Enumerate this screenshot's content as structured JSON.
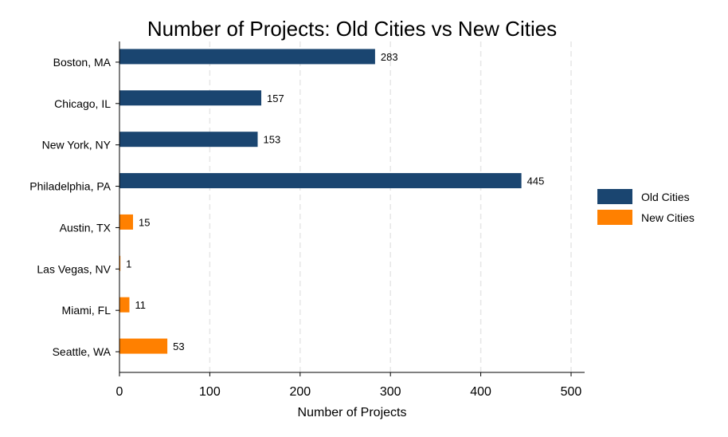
{
  "chart_data": {
    "type": "bar",
    "orientation": "horizontal",
    "title": "Number of Projects: Old Cities vs New Cities",
    "xlabel": "Number of Projects",
    "ylabel": "",
    "xlim": [
      0,
      515
    ],
    "xticks": [
      0,
      100,
      200,
      300,
      400,
      500
    ],
    "grid": "vertical dashed",
    "legend_position": "right",
    "categories": [
      "Boston, MA",
      "Chicago, IL",
      "New York, NY",
      "Philadelphia, PA",
      "Austin, TX",
      "Las Vegas, NV",
      "Miami, FL",
      "Seattle, WA"
    ],
    "series": [
      {
        "name": "Old Cities",
        "color": "#1a4570",
        "values": [
          283,
          157,
          153,
          445,
          null,
          null,
          null,
          null
        ]
      },
      {
        "name": "New Cities",
        "color": "#ff8000",
        "values": [
          null,
          null,
          null,
          null,
          15,
          1,
          11,
          53
        ]
      }
    ]
  }
}
